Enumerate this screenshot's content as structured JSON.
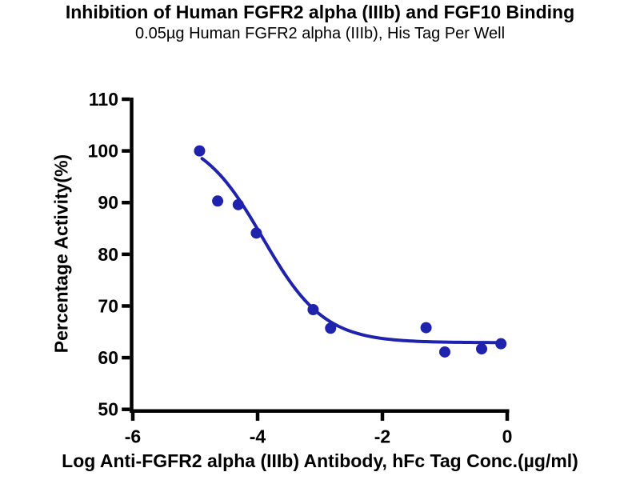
{
  "page": {
    "background": "#ffffff",
    "text_color": "#000000"
  },
  "chart_data": {
    "type": "scatter",
    "title": "Inhibition of Human FGFR2 alpha (IIIb) and FGF10 Binding",
    "subtitle": "0.05µg Human FGFR2 alpha (IIIb), His Tag Per Well",
    "xlabel": "Log Anti-FGFR2 alpha (IIIb) Antibody, hFc Tag Conc.(µg/ml)",
    "ylabel": "Percentage Activity(%)",
    "xlim": [
      -6,
      0
    ],
    "ylim": [
      50,
      110
    ],
    "x_ticks": [
      -6,
      -4,
      -2,
      0
    ],
    "y_ticks": [
      50,
      60,
      70,
      80,
      90,
      100,
      110
    ],
    "grid": false,
    "legend_position": "none",
    "axis_color": "#000000",
    "accent_color": "#1e22ad",
    "series": [
      {
        "name": "Percentage Activity",
        "marker": "circle",
        "color": "#1e22ad",
        "points": [
          [
            -4.93,
            100.0
          ],
          [
            -4.64,
            90.3
          ],
          [
            -4.31,
            89.6
          ],
          [
            -4.02,
            84.1
          ],
          [
            -3.11,
            69.3
          ],
          [
            -2.83,
            65.7
          ],
          [
            -1.3,
            65.8
          ],
          [
            -1.0,
            61.1
          ],
          [
            -0.41,
            61.7
          ],
          [
            -0.1,
            62.7
          ]
        ]
      }
    ],
    "fit_curve": {
      "model": "four_parameter_logistic",
      "top": 103.5,
      "bottom": 62.9,
      "log_ic50": -3.92,
      "hill": 0.88,
      "x_start": -4.89,
      "x_end": -0.1,
      "color": "#1e22ad"
    }
  }
}
